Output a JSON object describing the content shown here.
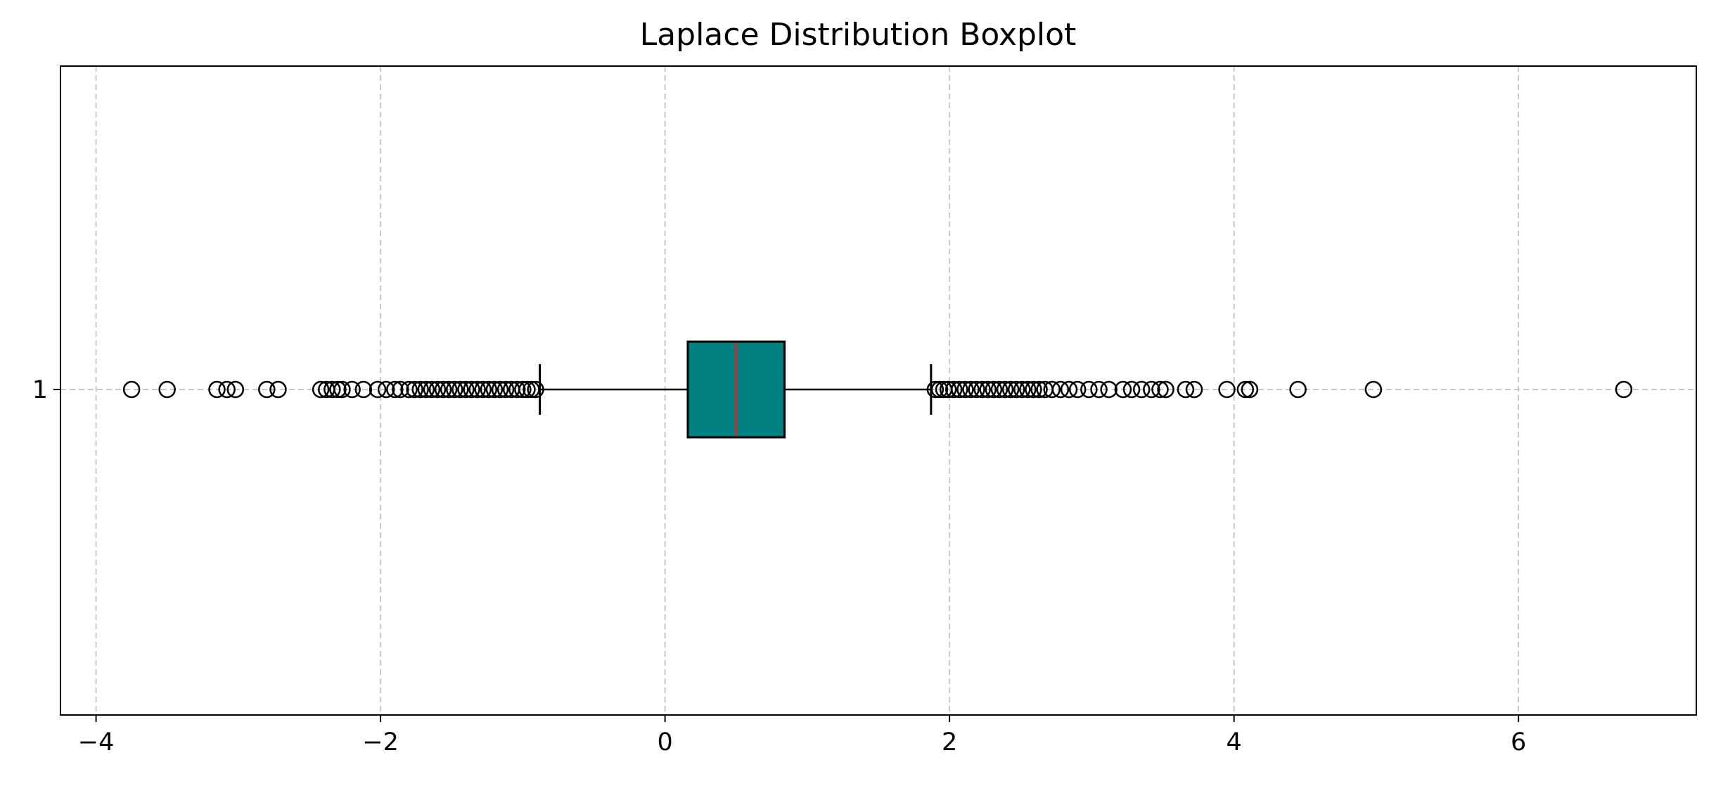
{
  "chart_data": {
    "type": "boxplot",
    "orientation": "horizontal",
    "title": "Laplace Distribution Boxplot",
    "xlabel": "",
    "ylabel": "",
    "xlim": [
      -4.25,
      7.25
    ],
    "xticks": [
      -4,
      -2,
      0,
      2,
      4,
      6
    ],
    "xtick_labels": [
      "−4",
      "−2",
      "0",
      "2",
      "4",
      "6"
    ],
    "categories": [
      "1"
    ],
    "grid": true,
    "colors": {
      "box_fill": "#008080",
      "box_edge": "#000000",
      "median": "#d62728",
      "grid": "#c8c8c8",
      "axis": "#000000",
      "flier_edge": "#000000"
    },
    "series": [
      {
        "category": "1",
        "whisker_low": -0.88,
        "q1": 0.16,
        "median": 0.5,
        "q3": 0.84,
        "whisker_high": 1.87,
        "outliers": [
          -3.75,
          -3.5,
          -3.15,
          -3.08,
          -3.02,
          -2.8,
          -2.72,
          -2.42,
          -2.38,
          -2.34,
          -2.3,
          -2.27,
          -2.2,
          -2.12,
          -2.02,
          -1.96,
          -1.9,
          -1.86,
          -1.8,
          -1.76,
          -1.72,
          -1.68,
          -1.64,
          -1.6,
          -1.56,
          -1.52,
          -1.48,
          -1.44,
          -1.4,
          -1.36,
          -1.32,
          -1.28,
          -1.24,
          -1.2,
          -1.16,
          -1.12,
          -1.08,
          -1.04,
          -1.0,
          -0.97,
          -0.94,
          -0.91,
          1.9,
          1.93,
          1.96,
          1.99,
          2.03,
          2.07,
          2.11,
          2.15,
          2.19,
          2.23,
          2.27,
          2.31,
          2.35,
          2.39,
          2.43,
          2.47,
          2.51,
          2.55,
          2.59,
          2.63,
          2.67,
          2.72,
          2.78,
          2.84,
          2.9,
          2.98,
          3.05,
          3.12,
          3.22,
          3.28,
          3.35,
          3.42,
          3.48,
          3.52,
          3.66,
          3.72,
          3.95,
          4.08,
          4.11,
          4.45,
          4.98,
          6.74
        ]
      }
    ]
  }
}
